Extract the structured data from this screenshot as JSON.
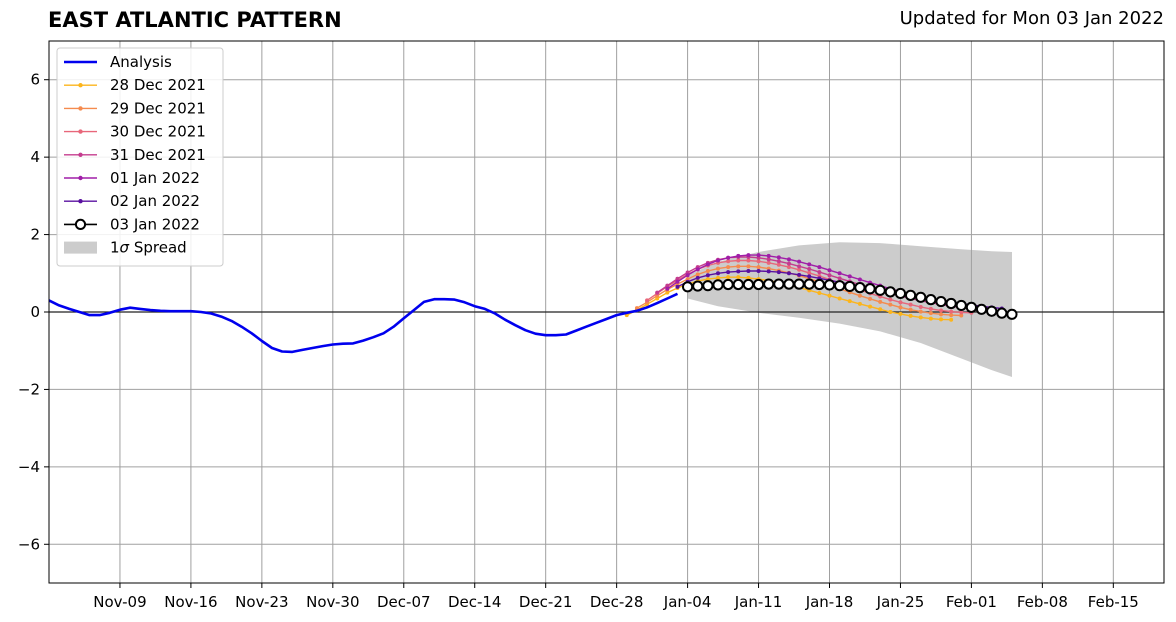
{
  "title": "EAST ATLANTIC PATTERN",
  "updated": "Updated for Mon 03 Jan 2022",
  "legend": {
    "analysis": "Analysis",
    "spread_prefix": "1",
    "spread_sigma": "σ",
    "spread_suffix": " Spread"
  },
  "chart_data": {
    "type": "line",
    "title": "EAST ATLANTIC PATTERN",
    "xlabel": "",
    "ylabel": "",
    "x_unit": "date",
    "xlim": [
      "2021-11-02",
      "2022-02-20"
    ],
    "ylim": [
      -7,
      7
    ],
    "yticks": [
      -6,
      -4,
      -2,
      0,
      2,
      4,
      6
    ],
    "ytick_labels": [
      "−6",
      "−4",
      "−2",
      "0",
      "2",
      "4",
      "6"
    ],
    "xticks": [
      "2021-11-09",
      "2021-11-16",
      "2021-11-23",
      "2021-11-30",
      "2021-12-07",
      "2021-12-14",
      "2021-12-21",
      "2021-12-28",
      "2022-01-04",
      "2022-01-11",
      "2022-01-18",
      "2022-01-25",
      "2022-02-01",
      "2022-02-08",
      "2022-02-15"
    ],
    "xtick_labels": [
      "Nov-09",
      "Nov-16",
      "Nov-23",
      "Nov-30",
      "Dec-07",
      "Dec-14",
      "Dec-21",
      "Dec-28",
      "Jan-04",
      "Jan-11",
      "Jan-18",
      "Jan-25",
      "Feb-01",
      "Feb-08",
      "Feb-15"
    ],
    "grid": true,
    "legend_position": "top-left",
    "analysis": {
      "name": "Analysis",
      "color": "#0000ee",
      "x": [
        "2021-11-02",
        "2021-11-03",
        "2021-11-04",
        "2021-11-05",
        "2021-11-06",
        "2021-11-07",
        "2021-11-08",
        "2021-11-09",
        "2021-11-10",
        "2021-11-11",
        "2021-11-12",
        "2021-11-13",
        "2021-11-14",
        "2021-11-15",
        "2021-11-16",
        "2021-11-17",
        "2021-11-18",
        "2021-11-19",
        "2021-11-20",
        "2021-11-21",
        "2021-11-22",
        "2021-11-23",
        "2021-11-24",
        "2021-11-25",
        "2021-11-26",
        "2021-11-27",
        "2021-11-28",
        "2021-11-29",
        "2021-11-30",
        "2021-12-01",
        "2021-12-02",
        "2021-12-03",
        "2021-12-04",
        "2021-12-05",
        "2021-12-06",
        "2021-12-07",
        "2021-12-08",
        "2021-12-09",
        "2021-12-10",
        "2021-12-11",
        "2021-12-12",
        "2021-12-13",
        "2021-12-14",
        "2021-12-15",
        "2021-12-16",
        "2021-12-17",
        "2021-12-18",
        "2021-12-19",
        "2021-12-20",
        "2021-12-21",
        "2021-12-22",
        "2021-12-23",
        "2021-12-24",
        "2021-12-25",
        "2021-12-26",
        "2021-12-27",
        "2021-12-28",
        "2021-12-29",
        "2021-12-30",
        "2021-12-31",
        "2022-01-01",
        "2022-01-02",
        "2022-01-03"
      ],
      "y": [
        0.3,
        0.17,
        0.08,
        0.0,
        -0.08,
        -0.08,
        -0.02,
        0.06,
        0.11,
        0.08,
        0.05,
        0.03,
        0.02,
        0.02,
        0.02,
        0.0,
        -0.04,
        -0.12,
        -0.23,
        -0.38,
        -0.55,
        -0.75,
        -0.93,
        -1.02,
        -1.03,
        -0.98,
        -0.93,
        -0.88,
        -0.84,
        -0.82,
        -0.81,
        -0.74,
        -0.65,
        -0.55,
        -0.38,
        -0.16,
        0.05,
        0.26,
        0.33,
        0.33,
        0.32,
        0.25,
        0.15,
        0.08,
        -0.04,
        -0.2,
        -0.34,
        -0.47,
        -0.56,
        -0.6,
        -0.6,
        -0.58,
        -0.48,
        -0.38,
        -0.28,
        -0.18,
        -0.08,
        -0.02,
        0.03,
        0.12,
        0.23,
        0.35,
        0.47
      ]
    },
    "series": [
      {
        "name": "28 Dec 2021",
        "color": "#fcb51c",
        "start": "2021-12-29",
        "x": [
          "2021-12-29",
          "2021-12-30",
          "2021-12-31",
          "2022-01-01",
          "2022-01-02",
          "2022-01-03",
          "2022-01-04",
          "2022-01-05",
          "2022-01-06",
          "2022-01-07",
          "2022-01-08",
          "2022-01-09",
          "2022-01-10",
          "2022-01-11",
          "2022-01-12",
          "2022-01-13",
          "2022-01-14",
          "2022-01-15",
          "2022-01-16",
          "2022-01-17",
          "2022-01-18",
          "2022-01-19",
          "2022-01-20",
          "2022-01-21",
          "2022-01-22",
          "2022-01-23",
          "2022-01-24",
          "2022-01-25",
          "2022-01-26",
          "2022-01-27",
          "2022-01-28",
          "2022-01-29",
          "2022-01-30"
        ],
        "y": [
          -0.08,
          0.05,
          0.2,
          0.35,
          0.5,
          0.62,
          0.72,
          0.8,
          0.85,
          0.88,
          0.9,
          0.9,
          0.88,
          0.85,
          0.81,
          0.76,
          0.7,
          0.63,
          0.56,
          0.49,
          0.42,
          0.35,
          0.28,
          0.21,
          0.14,
          0.07,
          0.0,
          -0.05,
          -0.1,
          -0.14,
          -0.17,
          -0.19,
          -0.2
        ]
      },
      {
        "name": "29 Dec 2021",
        "color": "#f58b4e",
        "start": "2021-12-30",
        "x": [
          "2021-12-30",
          "2021-12-31",
          "2022-01-01",
          "2022-01-02",
          "2022-01-03",
          "2022-01-04",
          "2022-01-05",
          "2022-01-06",
          "2022-01-07",
          "2022-01-08",
          "2022-01-09",
          "2022-01-10",
          "2022-01-11",
          "2022-01-12",
          "2022-01-13",
          "2022-01-14",
          "2022-01-15",
          "2022-01-16",
          "2022-01-17",
          "2022-01-18",
          "2022-01-19",
          "2022-01-20",
          "2022-01-21",
          "2022-01-22",
          "2022-01-23",
          "2022-01-24",
          "2022-01-25",
          "2022-01-26",
          "2022-01-27",
          "2022-01-28",
          "2022-01-29",
          "2022-01-30",
          "2022-01-31"
        ],
        "y": [
          0.1,
          0.25,
          0.42,
          0.58,
          0.72,
          0.85,
          0.97,
          1.06,
          1.12,
          1.16,
          1.18,
          1.18,
          1.16,
          1.12,
          1.07,
          1.01,
          0.94,
          0.86,
          0.78,
          0.69,
          0.6,
          0.51,
          0.42,
          0.34,
          0.26,
          0.19,
          0.12,
          0.06,
          0.01,
          -0.03,
          -0.06,
          -0.08,
          -0.09
        ]
      },
      {
        "name": "30 Dec 2021",
        "color": "#e8677a",
        "start": "2021-12-31",
        "x": [
          "2021-12-31",
          "2022-01-01",
          "2022-01-02",
          "2022-01-03",
          "2022-01-04",
          "2022-01-05",
          "2022-01-06",
          "2022-01-07",
          "2022-01-08",
          "2022-01-09",
          "2022-01-10",
          "2022-01-11",
          "2022-01-12",
          "2022-01-13",
          "2022-01-14",
          "2022-01-15",
          "2022-01-16",
          "2022-01-17",
          "2022-01-18",
          "2022-01-19",
          "2022-01-20",
          "2022-01-21",
          "2022-01-22",
          "2022-01-23",
          "2022-01-24",
          "2022-01-25",
          "2022-01-26",
          "2022-01-27",
          "2022-01-28",
          "2022-01-29",
          "2022-01-30",
          "2022-01-31",
          "2022-02-01"
        ],
        "y": [
          0.3,
          0.48,
          0.66,
          0.82,
          0.97,
          1.1,
          1.2,
          1.27,
          1.31,
          1.33,
          1.33,
          1.31,
          1.27,
          1.22,
          1.16,
          1.09,
          1.01,
          0.93,
          0.84,
          0.75,
          0.66,
          0.57,
          0.48,
          0.4,
          0.32,
          0.25,
          0.19,
          0.13,
          0.08,
          0.04,
          0.01,
          -0.01,
          -0.02
        ]
      },
      {
        "name": "31 Dec 2021",
        "color": "#c43c8e",
        "start": "2022-01-01",
        "x": [
          "2022-01-01",
          "2022-01-02",
          "2022-01-03",
          "2022-01-04",
          "2022-01-05",
          "2022-01-06",
          "2022-01-07",
          "2022-01-08",
          "2022-01-09",
          "2022-01-10",
          "2022-01-11",
          "2022-01-12",
          "2022-01-13",
          "2022-01-14",
          "2022-01-15",
          "2022-01-16",
          "2022-01-17",
          "2022-01-18",
          "2022-01-19",
          "2022-01-20",
          "2022-01-21",
          "2022-01-22",
          "2022-01-23",
          "2022-01-24",
          "2022-01-25",
          "2022-01-26",
          "2022-01-27",
          "2022-01-28",
          "2022-01-29",
          "2022-01-30",
          "2022-01-31",
          "2022-02-01",
          "2022-02-02"
        ],
        "y": [
          0.5,
          0.68,
          0.86,
          1.02,
          1.16,
          1.27,
          1.35,
          1.4,
          1.42,
          1.42,
          1.4,
          1.36,
          1.31,
          1.25,
          1.18,
          1.11,
          1.03,
          0.95,
          0.87,
          0.79,
          0.71,
          0.63,
          0.55,
          0.48,
          0.41,
          0.35,
          0.29,
          0.24,
          0.19,
          0.15,
          0.11,
          0.08,
          0.05
        ]
      },
      {
        "name": "01 Jan 2022",
        "color": "#a01ea8",
        "start": "2022-01-02",
        "x": [
          "2022-01-02",
          "2022-01-03",
          "2022-01-04",
          "2022-01-05",
          "2022-01-06",
          "2022-01-07",
          "2022-01-08",
          "2022-01-09",
          "2022-01-10",
          "2022-01-11",
          "2022-01-12",
          "2022-01-13",
          "2022-01-14",
          "2022-01-15",
          "2022-01-16",
          "2022-01-17",
          "2022-01-18",
          "2022-01-19",
          "2022-01-20",
          "2022-01-21",
          "2022-01-22",
          "2022-01-23",
          "2022-01-24",
          "2022-01-25",
          "2022-01-26",
          "2022-01-27",
          "2022-01-28",
          "2022-01-29",
          "2022-01-30",
          "2022-01-31",
          "2022-02-01",
          "2022-02-02",
          "2022-02-03"
        ],
        "y": [
          0.6,
          0.78,
          0.95,
          1.1,
          1.23,
          1.33,
          1.4,
          1.45,
          1.47,
          1.47,
          1.45,
          1.41,
          1.36,
          1.3,
          1.23,
          1.16,
          1.08,
          1.0,
          0.92,
          0.84,
          0.76,
          0.68,
          0.6,
          0.53,
          0.46,
          0.4,
          0.34,
          0.29,
          0.24,
          0.2,
          0.16,
          0.12,
          0.09
        ]
      },
      {
        "name": "02 Jan 2022",
        "color": "#5a10a0",
        "start": "2022-01-03",
        "x": [
          "2022-01-03",
          "2022-01-04",
          "2022-01-05",
          "2022-01-06",
          "2022-01-07",
          "2022-01-08",
          "2022-01-09",
          "2022-01-10",
          "2022-01-11",
          "2022-01-12",
          "2022-01-13",
          "2022-01-14",
          "2022-01-15",
          "2022-01-16",
          "2022-01-17",
          "2022-01-18",
          "2022-01-19",
          "2022-01-20",
          "2022-01-21",
          "2022-01-22",
          "2022-01-23",
          "2022-01-24",
          "2022-01-25",
          "2022-01-26",
          "2022-01-27",
          "2022-01-28",
          "2022-01-29",
          "2022-01-30",
          "2022-01-31",
          "2022-02-01",
          "2022-02-02",
          "2022-02-03",
          "2022-02-04"
        ],
        "y": [
          0.65,
          0.78,
          0.88,
          0.95,
          1.0,
          1.03,
          1.05,
          1.06,
          1.06,
          1.05,
          1.03,
          1.0,
          0.96,
          0.92,
          0.87,
          0.82,
          0.77,
          0.72,
          0.67,
          0.62,
          0.57,
          0.52,
          0.47,
          0.42,
          0.38,
          0.34,
          0.3,
          0.26,
          0.22,
          0.18,
          0.15,
          0.12,
          0.09
        ]
      },
      {
        "name": "03 Jan 2022",
        "color": "#000000",
        "start": "2022-01-04",
        "x": [
          "2022-01-04",
          "2022-01-05",
          "2022-01-06",
          "2022-01-07",
          "2022-01-08",
          "2022-01-09",
          "2022-01-10",
          "2022-01-11",
          "2022-01-12",
          "2022-01-13",
          "2022-01-14",
          "2022-01-15",
          "2022-01-16",
          "2022-01-17",
          "2022-01-18",
          "2022-01-19",
          "2022-01-20",
          "2022-01-21",
          "2022-01-22",
          "2022-01-23",
          "2022-01-24",
          "2022-01-25",
          "2022-01-26",
          "2022-01-27",
          "2022-01-28",
          "2022-01-29",
          "2022-01-30",
          "2022-01-31",
          "2022-02-01",
          "2022-02-02",
          "2022-02-03",
          "2022-02-04",
          "2022-02-05"
        ],
        "y": [
          0.65,
          0.67,
          0.68,
          0.7,
          0.71,
          0.71,
          0.71,
          0.71,
          0.72,
          0.72,
          0.72,
          0.72,
          0.72,
          0.71,
          0.7,
          0.68,
          0.66,
          0.63,
          0.6,
          0.56,
          0.52,
          0.48,
          0.43,
          0.38,
          0.32,
          0.27,
          0.22,
          0.17,
          0.12,
          0.07,
          0.02,
          -0.03,
          -0.06
        ]
      }
    ],
    "spread": {
      "name": "1σ Spread",
      "color": "#cccccc",
      "x": [
        "2022-01-04",
        "2022-01-07",
        "2022-01-11",
        "2022-01-15",
        "2022-01-19",
        "2022-01-23",
        "2022-01-27",
        "2022-01-31",
        "2022-02-03",
        "2022-02-05"
      ],
      "upper": [
        0.95,
        1.3,
        1.55,
        1.72,
        1.8,
        1.78,
        1.7,
        1.62,
        1.57,
        1.55
      ],
      "lower": [
        0.35,
        0.15,
        -0.02,
        -0.15,
        -0.3,
        -0.5,
        -0.8,
        -1.2,
        -1.5,
        -1.68
      ]
    }
  }
}
